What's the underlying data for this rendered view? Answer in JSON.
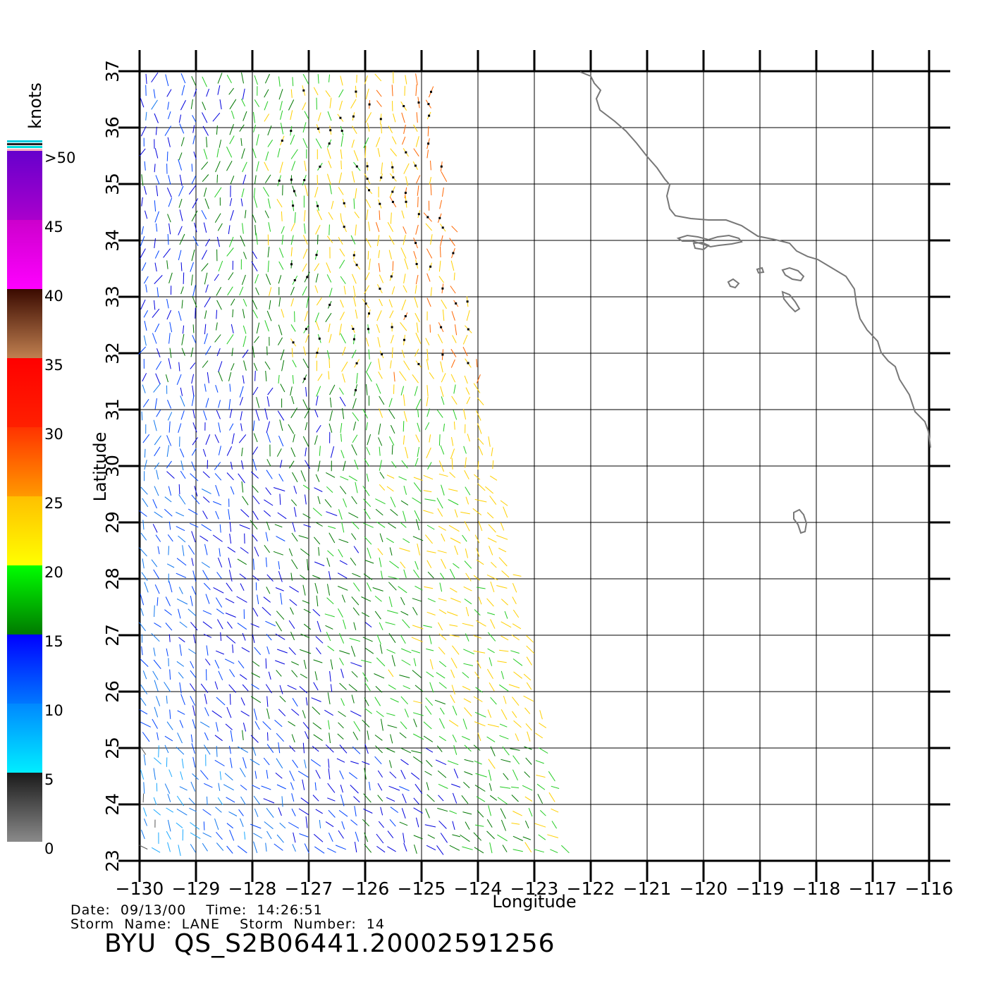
{
  "info": {
    "date_line": "Date:  09/13/00    Time:  14:26:51",
    "storm_line": "Storm  Name:  LANE    Storm  Number:  14",
    "file_title": "BYU  QS_S2B06441.20002591256"
  },
  "axes": {
    "xlabel": "Longitude",
    "ylabel": "Latitude",
    "lon_range": [
      -130,
      -116
    ],
    "lat_range": [
      23,
      37
    ],
    "lon_ticks": [
      -130,
      -129,
      -128,
      -127,
      -126,
      -125,
      -124,
      -123,
      -122,
      -121,
      -120,
      -119,
      -118,
      -117,
      -116
    ],
    "lat_ticks": [
      23,
      24,
      25,
      26,
      27,
      28,
      29,
      30,
      31,
      32,
      33,
      34,
      35,
      36,
      37
    ],
    "grid": true
  },
  "legend": {
    "title": "knots",
    "labels": [
      ">50",
      "45",
      "40",
      "35",
      "30",
      "25",
      "20",
      "15",
      "10",
      "5",
      "0"
    ],
    "bands": [
      {
        "from": 0,
        "to": 5,
        "colors": [
          "#8a8a8a",
          "#1a1a1a"
        ]
      },
      {
        "from": 5,
        "to": 10,
        "colors": [
          "#00eeff",
          "#0088ff"
        ]
      },
      {
        "from": 10,
        "to": 15,
        "colors": [
          "#0077ff",
          "#0000ff"
        ]
      },
      {
        "from": 15,
        "to": 20,
        "colors": [
          "#007a00",
          "#00ff00"
        ]
      },
      {
        "from": 20,
        "to": 25,
        "colors": [
          "#ffff00",
          "#ffc000"
        ]
      },
      {
        "from": 25,
        "to": 30,
        "colors": [
          "#ff9900",
          "#ff3300"
        ]
      },
      {
        "from": 30,
        "to": 35,
        "colors": [
          "#ff2000",
          "#ff0000"
        ]
      },
      {
        "from": 35,
        "to": 40,
        "colors": [
          "#c08050",
          "#3a0a00"
        ]
      },
      {
        "from": 40,
        "to": 45,
        "colors": [
          "#ff00ff",
          "#cc00cc"
        ]
      },
      {
        "from": 45,
        "to": 50,
        "colors": [
          "#aa00cc",
          "#6600cc"
        ]
      }
    ]
  },
  "colors": {
    "frame": "#000000",
    "grid": "#000000",
    "coast": "#777777",
    "rain_flag": "#000000"
  }
}
